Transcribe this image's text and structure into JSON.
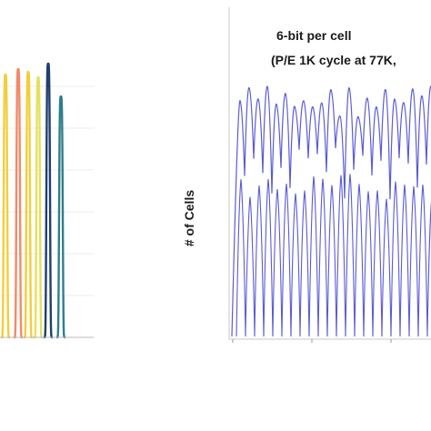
{
  "chart_data": [
    {
      "type": "line",
      "title": "",
      "xlabel": "",
      "ylabel": "",
      "grid": true,
      "series": [
        {
          "color": "#f2ce3c",
          "peak": 0.96
        },
        {
          "color": "#f08a6a",
          "peak": 0.98
        },
        {
          "color": "#f2ce3c",
          "peak": 0.97
        },
        {
          "color": "#e5e060",
          "peak": 0.95
        },
        {
          "color": "#1f3f70",
          "peak": 1.0
        },
        {
          "color": "#2f7e8a",
          "peak": 0.88
        }
      ]
    },
    {
      "type": "line",
      "title": "",
      "annotation_line1": "6-bit per cell",
      "annotation_line2": "(P/E 1K cycle at 77K,",
      "ylabel": "# of Cells",
      "xlabel": "",
      "series": [
        {
          "color": "#5b5bd6",
          "peak_count": 22
        }
      ]
    }
  ]
}
